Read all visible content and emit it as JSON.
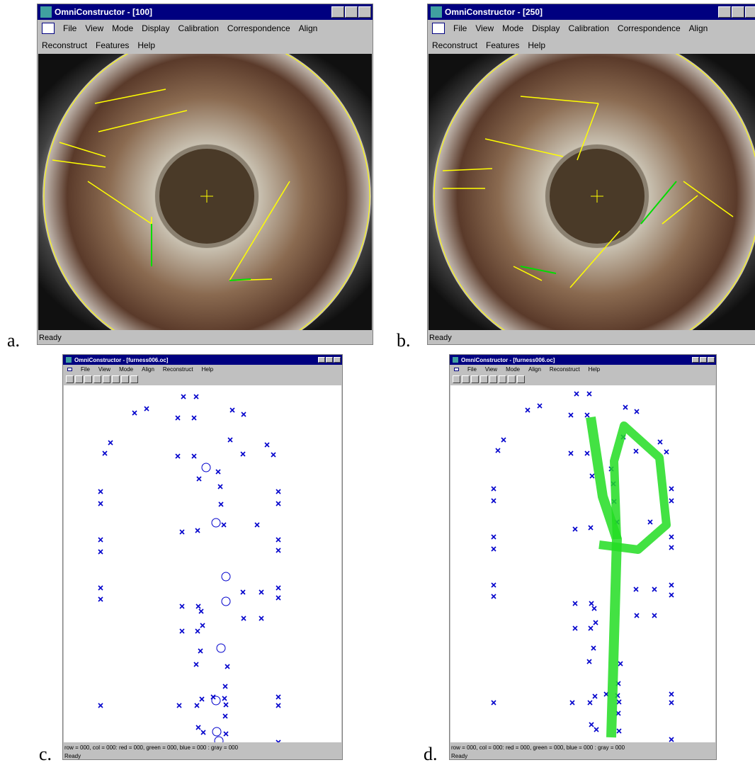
{
  "panels": [
    {
      "label": "a.",
      "window": {
        "title": "OmniConstructor - [100]",
        "menu": [
          "File",
          "View",
          "Mode",
          "Display",
          "Calibration",
          "Correspondence",
          "Align"
        ],
        "menu2": [
          "Reconstruct",
          "Features",
          "Help"
        ],
        "status": "Ready"
      }
    },
    {
      "label": "b.",
      "window": {
        "title": "OmniConstructor - [250]",
        "menu": [
          "File",
          "View",
          "Mode",
          "Display",
          "Calibration",
          "Correspondence",
          "Align"
        ],
        "menu2": [
          "Reconstruct",
          "Features",
          "Help"
        ],
        "status": "Ready"
      }
    },
    {
      "label": "c.",
      "window": {
        "title": "OmniConstructor - [furness006.oc]",
        "menu": [
          "File",
          "View",
          "Mode",
          "Align",
          "Reconstruct",
          "Help"
        ],
        "info": "row = 000, col = 000: red = 000, green = 000, blue = 000 : gray = 000",
        "status": "Ready"
      }
    },
    {
      "label": "d.",
      "window": {
        "title": "OmniConstructor - [furness006.oc]",
        "menu": [
          "File",
          "View",
          "Mode",
          "Align",
          "Reconstruct",
          "Help"
        ],
        "info": "row = 000, col = 000: red = 000, green = 000, blue = 000 : gray = 000",
        "status": "Ready"
      }
    }
  ]
}
